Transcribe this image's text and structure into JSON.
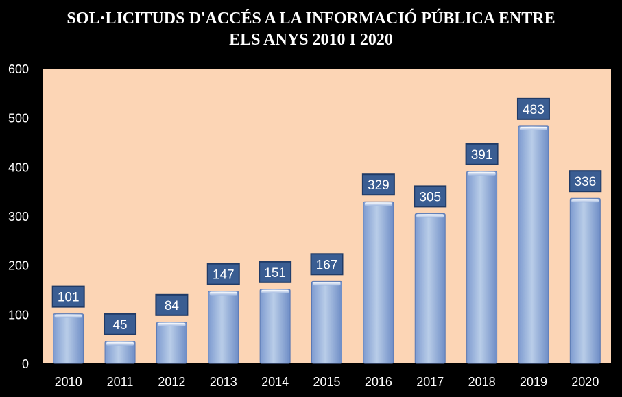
{
  "chart_data": {
    "type": "bar",
    "title_lines": [
      "SOL·LICITUDS D'ACCÉS A LA INFORMACIÓ PÚBLICA ENTRE",
      "ELS ANYS 2010 I 2020"
    ],
    "categories": [
      "2010",
      "2011",
      "2012",
      "2013",
      "2014",
      "2015",
      "2016",
      "2017",
      "2018",
      "2019",
      "2020"
    ],
    "values": [
      101,
      45,
      84,
      147,
      151,
      167,
      329,
      305,
      391,
      483,
      336
    ],
    "data_labels": [
      "101",
      "45",
      "84",
      "147",
      "151",
      "167",
      "329",
      "305",
      "391",
      "483",
      "336"
    ],
    "ylim": [
      0,
      600
    ],
    "yticks": [
      0,
      100,
      200,
      300,
      400,
      500,
      600
    ],
    "ytick_labels": [
      "0",
      "100",
      "200",
      "300",
      "400",
      "500",
      "600"
    ],
    "grid": false,
    "legend": "none",
    "colors": {
      "background": "#000000",
      "plot_area": "#FCD5B5",
      "bar_light": "#B9CDE8",
      "bar_dark": "#6E8DC6",
      "label_box": "#3A5D92",
      "label_border": "#1F3A66",
      "text": "#FFFFFF"
    }
  }
}
